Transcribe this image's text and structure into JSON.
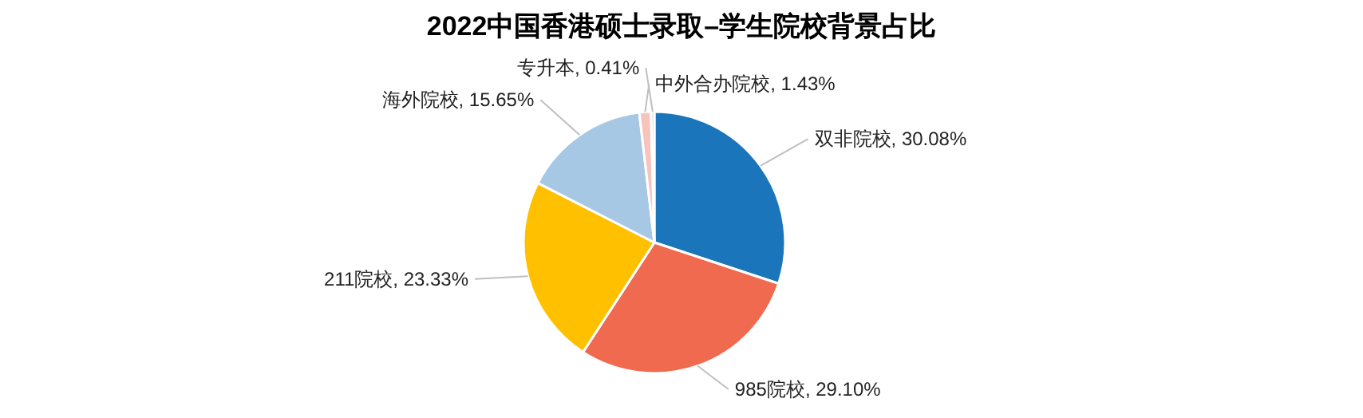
{
  "chart_data": {
    "type": "pie",
    "title": "2022中国香港硕士录取–学生院校背景占比",
    "categories": [
      "双非院校",
      "985院校",
      "211院校",
      "海外院校",
      "中外合办院校",
      "专升本"
    ],
    "values": [
      30.08,
      29.1,
      23.33,
      15.65,
      1.43,
      0.41
    ],
    "colors": [
      "#1b75bb",
      "#ef6a4f",
      "#ffc000",
      "#a6c8e4",
      "#f6c3bd",
      "#d9d9d9"
    ],
    "value_labels": [
      "30.08%",
      "29.10%",
      "23.33%",
      "15.65%",
      "1.43%",
      "0.41%"
    ]
  }
}
